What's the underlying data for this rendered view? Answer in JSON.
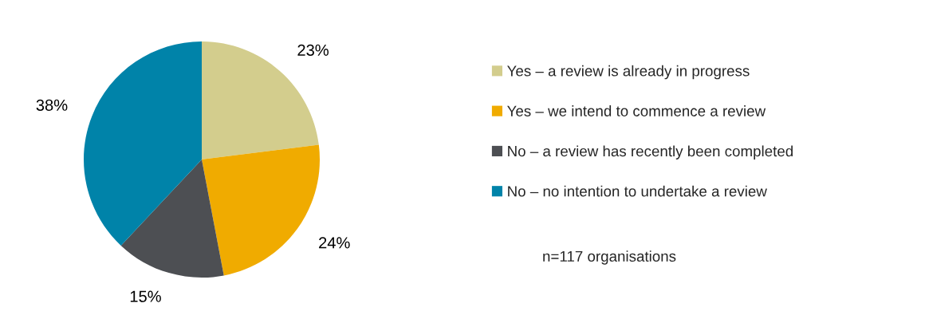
{
  "chart_data": {
    "type": "pie",
    "categories": [
      "Yes – a review is already in progress",
      "Yes – we intend to commence a review",
      "No – a review has recently been completed",
      "No – no intention to undertake a review"
    ],
    "values": [
      23,
      24,
      15,
      38
    ],
    "colors": [
      "#d3cd8d",
      "#f0ab00",
      "#4d4f53",
      "#0083a9"
    ],
    "value_labels": [
      "23%",
      "24%",
      "15%",
      "38%"
    ],
    "legend": "right",
    "annotations": [
      "n=117 organisations"
    ]
  }
}
